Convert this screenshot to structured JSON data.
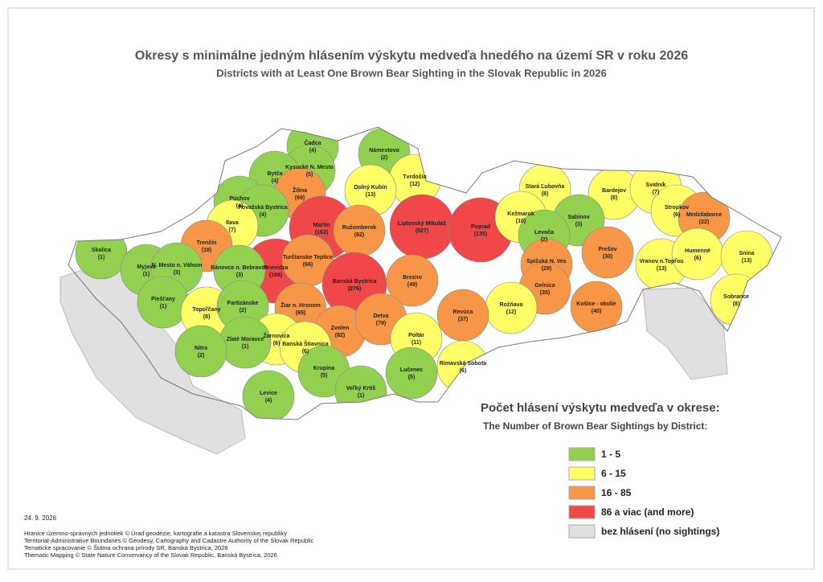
{
  "title": "Okresy s minimálne jedným hlásením výskytu medveďa hnedého na území SR v roku 2026",
  "subtitle": "Districts with at Least One Brown Bear Sighting in the Slovak Republic in 2026",
  "districts": [
    {
      "name": "Čadca",
      "count": "(4)",
      "class": 0
    },
    {
      "name": "Námestovo",
      "count": "(2)",
      "class": 0
    },
    {
      "name": "Kysucké N. Mesto",
      "count": "(5)",
      "class": 0
    },
    {
      "name": "Bytča",
      "count": "(4)",
      "class": 0
    },
    {
      "name": "Tvrdošín",
      "count": "(12)",
      "class": 1
    },
    {
      "name": "Dolný Kubín",
      "count": "(13)",
      "class": 1
    },
    {
      "name": "Žilina",
      "count": "(69)",
      "class": 2
    },
    {
      "name": "Púchov",
      "count": "(4)",
      "class": 0
    },
    {
      "name": "Považská Bystrica",
      "count": "(4)",
      "class": 0
    },
    {
      "name": "Stará Ľubovňa",
      "count": "(8)",
      "class": 1
    },
    {
      "name": "Bardejov",
      "count": "(8)",
      "class": 1
    },
    {
      "name": "Svidník",
      "count": "(7)",
      "class": 1
    },
    {
      "name": "Stropkov",
      "count": "(6)",
      "class": 1
    },
    {
      "name": "Medzilaborce",
      "count": "(22)",
      "class": 2
    },
    {
      "name": "Ilava",
      "count": "(7)",
      "class": 1
    },
    {
      "name": "Martin",
      "count": "(162)",
      "class": 3
    },
    {
      "name": "Ružomberok",
      "count": "(62)",
      "class": 2
    },
    {
      "name": "Liptovský Mikuláš",
      "count": "(527)",
      "class": 3
    },
    {
      "name": "Poprad",
      "count": "(135)",
      "class": 3
    },
    {
      "name": "Kežmarok",
      "count": "(10)",
      "class": 1
    },
    {
      "name": "Sabinov",
      "count": "(3)",
      "class": 0
    },
    {
      "name": "Levoča",
      "count": "(2)",
      "class": 0
    },
    {
      "name": "Trenčín",
      "count": "(18)",
      "class": 2
    },
    {
      "name": "Skalica",
      "count": "(1)",
      "class": 0
    },
    {
      "name": "Myjava",
      "count": "(1)",
      "class": 0
    },
    {
      "name": "N. Mesto n. Váhom",
      "count": "(3)",
      "class": 0
    },
    {
      "name": "Prievidza",
      "count": "(198)",
      "class": 3
    },
    {
      "name": "Turčianske Teplice",
      "count": "(66)",
      "class": 2
    },
    {
      "name": "Bánovce n. Bebravou",
      "count": "(3)",
      "class": 0
    },
    {
      "name": "Banská Bystrica",
      "count": "(276)",
      "class": 3
    },
    {
      "name": "Brezno",
      "count": "(49)",
      "class": 2
    },
    {
      "name": "Spišská N. Ves",
      "count": "(29)",
      "class": 2
    },
    {
      "name": "Prešov",
      "count": "(30)",
      "class": 2
    },
    {
      "name": "Vranov n.Topľou",
      "count": "(13)",
      "class": 1
    },
    {
      "name": "Humenné",
      "count": "(6)",
      "class": 1
    },
    {
      "name": "Snina",
      "count": "(13)",
      "class": 1
    },
    {
      "name": "Piešťany",
      "count": "(1)",
      "class": 0
    },
    {
      "name": "Topoľčany",
      "count": "(8)",
      "class": 1
    },
    {
      "name": "Partizánske",
      "count": "(2)",
      "class": 0
    },
    {
      "name": "Žiar n. Hronom",
      "count": "(65)",
      "class": 2
    },
    {
      "name": "Gelnica",
      "count": "(35)",
      "class": 2
    },
    {
      "name": "Košice - okolie",
      "count": "(40)",
      "class": 2
    },
    {
      "name": "Sobrance",
      "count": "(8)",
      "class": 1
    },
    {
      "name": "Rožňava",
      "count": "(12)",
      "class": 1
    },
    {
      "name": "Revúca",
      "count": "(37)",
      "class": 2
    },
    {
      "name": "Zvolen",
      "count": "(82)",
      "class": 2
    },
    {
      "name": "Detva",
      "count": "(79)",
      "class": 2
    },
    {
      "name": "Žarnovica",
      "count": "(6)",
      "class": 1
    },
    {
      "name": "Zlaté Moravce",
      "count": "(1)",
      "class": 0
    },
    {
      "name": "Nitra",
      "count": "(2)",
      "class": 0
    },
    {
      "name": "Banská Štiavnica",
      "count": "(6)",
      "class": 1
    },
    {
      "name": "Poltár",
      "count": "(11)",
      "class": 1
    },
    {
      "name": "Krupina",
      "count": "(5)",
      "class": 0
    },
    {
      "name": "Rimavská Sobota",
      "count": "(6)",
      "class": 1
    },
    {
      "name": "Lučenec",
      "count": "(5)",
      "class": 0
    },
    {
      "name": "Levice",
      "count": "(4)",
      "class": 0
    },
    {
      "name": "Veľký Krtíš",
      "count": "(1)",
      "class": 0
    }
  ],
  "legend": {
    "title": "Počet hlásení výskytu medveďa v okrese:",
    "subtitle": "The Number of Brown Bear Sightings by District:",
    "classes": [
      {
        "label": "1 - 5",
        "color": "#92d050"
      },
      {
        "label": "6 - 15",
        "color": "#ffff66"
      },
      {
        "label": "16 - 85",
        "color": "#f79646"
      },
      {
        "label": "86 a viac (and more)",
        "color": "#f04848"
      },
      {
        "label": "bez hlásení  (no sightings)",
        "color": "#e0e0e0"
      }
    ]
  },
  "date": "24. 9. 2026",
  "credits": [
    "Hranice územno-správnych jednotiek © Úrad geodézie, kartografie a katastra Slovenskej republiky",
    "Territorial-Administrative Boundaries © Geodesy, Cartography and Cadastre Authority of the Slovak Republic",
    "Tematické spracovanie © Štátna ochrana prírody SR, Banská Bystrica, 2026",
    "Thematic Mapping © State Nature Conservancy of the Slovak Republic, Banská Bystrica, 2026"
  ]
}
